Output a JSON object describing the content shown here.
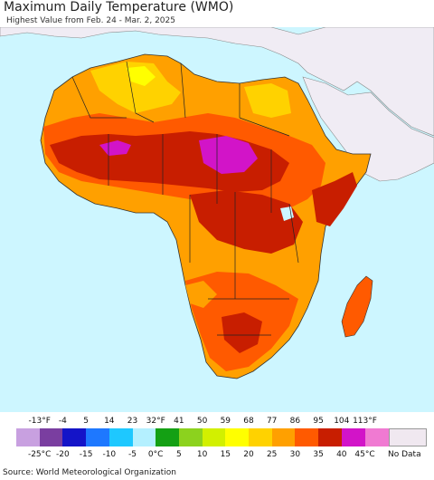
{
  "header": {
    "title": "Maximum Daily Temperature (WMO)",
    "subtitle": "Highest Value from Feb. 24 - Mar. 2, 2025"
  },
  "legend": {
    "fahrenheit_ticks": [
      "-13°F",
      "-4",
      "5",
      "14",
      "23",
      "32°F",
      "41",
      "50",
      "59",
      "68",
      "77",
      "86",
      "95",
      "104",
      "113°F"
    ],
    "celsius_ticks": [
      "-25°C",
      "-20",
      "-15",
      "-10",
      "-5",
      "0°C",
      "5",
      "10",
      "15",
      "20",
      "25",
      "30",
      "35",
      "40",
      "45°C"
    ],
    "colors": [
      "#c8a0e0",
      "#7a3ea0",
      "#1414c8",
      "#1e78ff",
      "#1ec8ff",
      "#b4f0ff",
      "#14a014",
      "#8cd21e",
      "#d2f000",
      "#ffff00",
      "#ffd200",
      "#ffa000",
      "#ff5a00",
      "#c81e00",
      "#d214c8",
      "#f07ad2"
    ],
    "no_data_label": "No Data",
    "no_data_color": "#f0e8f0"
  },
  "map": {
    "ocean_color": "#cdf6ff",
    "land_nodata_color": "#f0ecf4"
  },
  "footer": {
    "source": "Source: World Meteorological Organization"
  }
}
